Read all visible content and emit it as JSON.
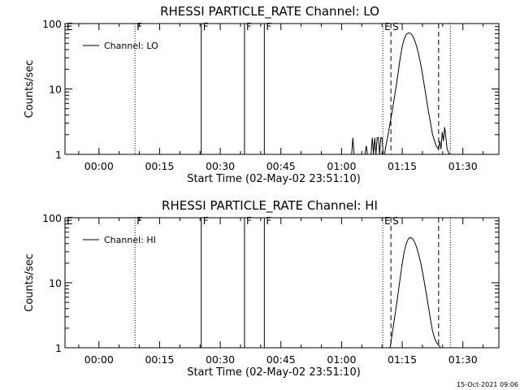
{
  "page": {
    "timestamp": "15-Oct-2021 09:06"
  },
  "chart_data": [
    {
      "type": "line",
      "title": "RHESSI PARTICLE_RATE Channel: LO",
      "xlabel": "Start Time (02-May-02 23:51:10)",
      "ylabel": "Counts/sec",
      "y_scale": "log",
      "ylim": [
        1,
        100
      ],
      "xlim_minutes": [
        -8.4,
        98.9
      ],
      "x_ticks": [
        {
          "label": "00:00",
          "minute": 0
        },
        {
          "label": "00:15",
          "minute": 15
        },
        {
          "label": "00:30",
          "minute": 30
        },
        {
          "label": "00:45",
          "minute": 45
        },
        {
          "label": "01:00",
          "minute": 60
        },
        {
          "label": "01:15",
          "minute": 75
        },
        {
          "label": "01:30",
          "minute": 90
        }
      ],
      "y_ticks": [
        {
          "label": "1",
          "value": 1
        },
        {
          "label": "10",
          "value": 10
        },
        {
          "label": "100",
          "value": 100
        }
      ],
      "legend": {
        "label": "Channel: LO",
        "position": "top-left"
      },
      "flags": [
        {
          "label": "E",
          "minute": -8.4,
          "style": "none"
        },
        {
          "label": "F",
          "minute": 8.9,
          "style": "dotted"
        },
        {
          "label": "F",
          "minute": 25.3,
          "style": "solid"
        },
        {
          "label": "F",
          "minute": 36.0,
          "style": "solid"
        },
        {
          "label": "F",
          "minute": 40.9,
          "style": "solid"
        },
        {
          "label": "E",
          "minute": 70.2,
          "style": "dotted"
        },
        {
          "label": "S",
          "minute": 72.2,
          "style": "dashed"
        },
        {
          "label": "",
          "minute": 84.0,
          "style": "dashed"
        },
        {
          "label": "",
          "minute": 86.9,
          "style": "dotted"
        }
      ],
      "series": [
        {
          "minutes": [
            62.5,
            62.8,
            63.1,
            65.8,
            66.1,
            66.4,
            67.3,
            67.6,
            67.9,
            68.2,
            68.5,
            68.8,
            69.1,
            69.4,
            69.7,
            70.0,
            70.3,
            70.6,
            71.0,
            71.5,
            72.0,
            72.5,
            73.0,
            73.5,
            74.0,
            74.5,
            75.0,
            75.5,
            76.0,
            76.5,
            77.0,
            77.5,
            78.0,
            78.5,
            79.0,
            79.5,
            80.0,
            80.5,
            81.0,
            81.5,
            82.0,
            82.5,
            83.0,
            83.5,
            84.0,
            84.3,
            84.6,
            84.9,
            85.2,
            85.5,
            85.8,
            86.1,
            86.4,
            86.7
          ],
          "values": [
            1.0,
            1.8,
            1.0,
            1.0,
            1.35,
            1.0,
            1.0,
            1.8,
            1.0,
            1.8,
            1.0,
            1.8,
            1.8,
            1.0,
            1.8,
            1.8,
            1.0,
            1.0,
            1.4,
            2.0,
            3.0,
            4.5,
            7.0,
            11.0,
            18.0,
            30.0,
            45.0,
            58.0,
            68.0,
            72.0,
            71.0,
            66.0,
            57.0,
            46.0,
            35.0,
            25.0,
            17.0,
            11.0,
            7.0,
            4.5,
            3.0,
            2.0,
            1.6,
            1.3,
            1.2,
            1.6,
            1.2,
            2.2,
            1.6,
            2.6,
            1.8,
            1.2,
            1.1,
            1.0
          ]
        }
      ]
    },
    {
      "type": "line",
      "title": "RHESSI PARTICLE_RATE Channel: HI",
      "xlabel": "Start Time (02-May-02 23:51:10)",
      "ylabel": "Counts/sec",
      "y_scale": "log",
      "ylim": [
        1,
        100
      ],
      "xlim_minutes": [
        -8.4,
        98.9
      ],
      "x_ticks": [
        {
          "label": "00:00",
          "minute": 0
        },
        {
          "label": "00:15",
          "minute": 15
        },
        {
          "label": "00:30",
          "minute": 30
        },
        {
          "label": "00:45",
          "minute": 45
        },
        {
          "label": "01:00",
          "minute": 60
        },
        {
          "label": "01:15",
          "minute": 75
        },
        {
          "label": "01:30",
          "minute": 90
        }
      ],
      "y_ticks": [
        {
          "label": "1",
          "value": 1
        },
        {
          "label": "10",
          "value": 10
        },
        {
          "label": "100",
          "value": 100
        }
      ],
      "legend": {
        "label": "Channel: HI",
        "position": "top-left"
      },
      "flags": [
        {
          "label": "E",
          "minute": -8.4,
          "style": "none"
        },
        {
          "label": "F",
          "minute": 8.9,
          "style": "dotted"
        },
        {
          "label": "F",
          "minute": 25.3,
          "style": "solid"
        },
        {
          "label": "F",
          "minute": 36.0,
          "style": "solid"
        },
        {
          "label": "F",
          "minute": 40.9,
          "style": "solid"
        },
        {
          "label": "E",
          "minute": 70.2,
          "style": "dotted"
        },
        {
          "label": "S",
          "minute": 72.2,
          "style": "dashed"
        },
        {
          "label": "",
          "minute": 84.0,
          "style": "dashed"
        },
        {
          "label": "",
          "minute": 86.9,
          "style": "dotted"
        }
      ],
      "series": [
        {
          "minutes": [
            72.0,
            72.5,
            73.0,
            73.5,
            74.0,
            74.5,
            75.0,
            75.5,
            76.0,
            76.5,
            77.0,
            77.5,
            78.0,
            78.5,
            79.0,
            79.5,
            80.0,
            80.5,
            81.0,
            81.5,
            82.0,
            82.5,
            83.0,
            83.5,
            84.0,
            84.5
          ],
          "values": [
            1.0,
            1.6,
            2.6,
            4.2,
            7.0,
            12.0,
            20.0,
            30.0,
            40.0,
            47.0,
            50.0,
            48.0,
            43.0,
            36.0,
            28.0,
            21.0,
            15.0,
            10.0,
            6.5,
            4.2,
            2.7,
            1.8,
            1.4,
            1.2,
            1.1,
            1.0
          ]
        }
      ]
    }
  ]
}
